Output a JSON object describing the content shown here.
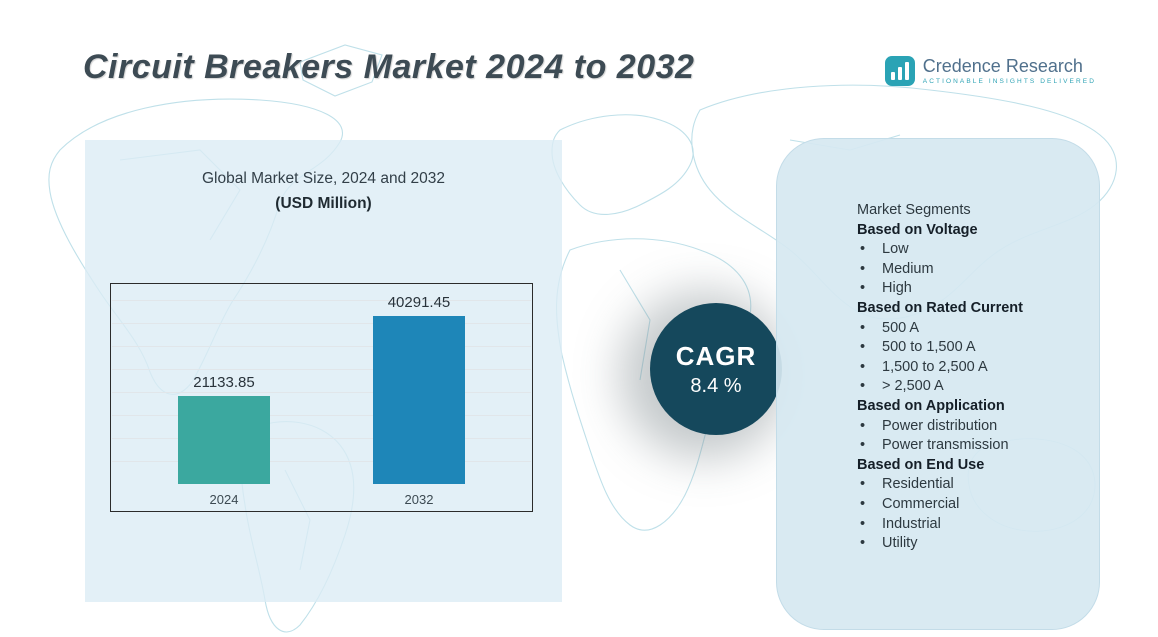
{
  "title": "Circuit Breakers Market 2024 to 2032",
  "logo": {
    "name": "Credence Research",
    "tagline": "Actionable Insights Delivered"
  },
  "chart_data": {
    "type": "bar",
    "title": "Global Market Size, 2024 and 2032",
    "subtitle": "(USD Million)",
    "categories": [
      "2024",
      "2032"
    ],
    "values": [
      21133.85,
      40291.45
    ],
    "value_labels": [
      "21133.85",
      "40291.45"
    ],
    "bar_colors": [
      "#3BA89F",
      "#1E86B8"
    ],
    "ylim": [
      0,
      43000
    ],
    "grid": true,
    "legend": "none"
  },
  "cagr": {
    "label": "CAGR",
    "value": "8.4 %"
  },
  "segments": {
    "title": "Market Segments",
    "groups": [
      {
        "heading": "Based on Voltage",
        "items": [
          "Low",
          "Medium",
          "High"
        ]
      },
      {
        "heading": "Based on Rated Current",
        "items": [
          "500 A",
          "500 to 1,500 A",
          "1,500 to 2,500 A",
          "> 2,500 A"
        ]
      },
      {
        "heading": "Based on Application",
        "items": [
          "Power distribution",
          "Power transmission"
        ]
      },
      {
        "heading": "Based on End Use",
        "items": [
          "Residential",
          "Commercial",
          "Industrial",
          "Utility"
        ]
      }
    ]
  },
  "colors": {
    "accent_teal": "#3BA89F",
    "accent_blue": "#1E86B8",
    "cagr_circle": "#15485C",
    "panel_bg": "#D9EAF3",
    "title_text": "#3D4B54",
    "map_stroke": "#BFE0E9"
  }
}
